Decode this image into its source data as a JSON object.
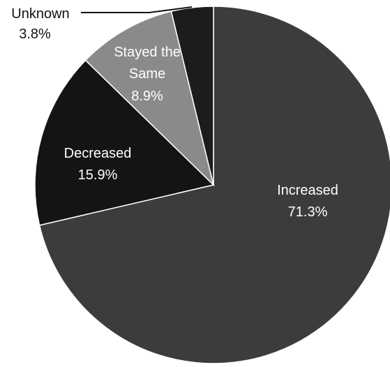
{
  "chart_data": {
    "type": "pie",
    "title": "",
    "slices": [
      {
        "label": "Increased",
        "percent_text": "71.3%",
        "value": 71.3,
        "color": "#3c3c3c",
        "text_color": "#ffffff"
      },
      {
        "label": "Decreased",
        "percent_text": "15.9%",
        "value": 15.9,
        "color": "#141414",
        "text_color": "#ffffff"
      },
      {
        "label": "Stayed the Same",
        "label_lines": [
          "Stayed the",
          "Same"
        ],
        "percent_text": "8.9%",
        "value": 8.9,
        "color": "#8a8a8a",
        "text_color": "#ffffff"
      },
      {
        "label": "Unknown",
        "percent_text": "3.8%",
        "value": 3.8,
        "color": "#1c1c1c",
        "text_color": "#111111"
      }
    ],
    "start_angle_deg": 0,
    "direction": "clockwise",
    "legend": "none"
  }
}
